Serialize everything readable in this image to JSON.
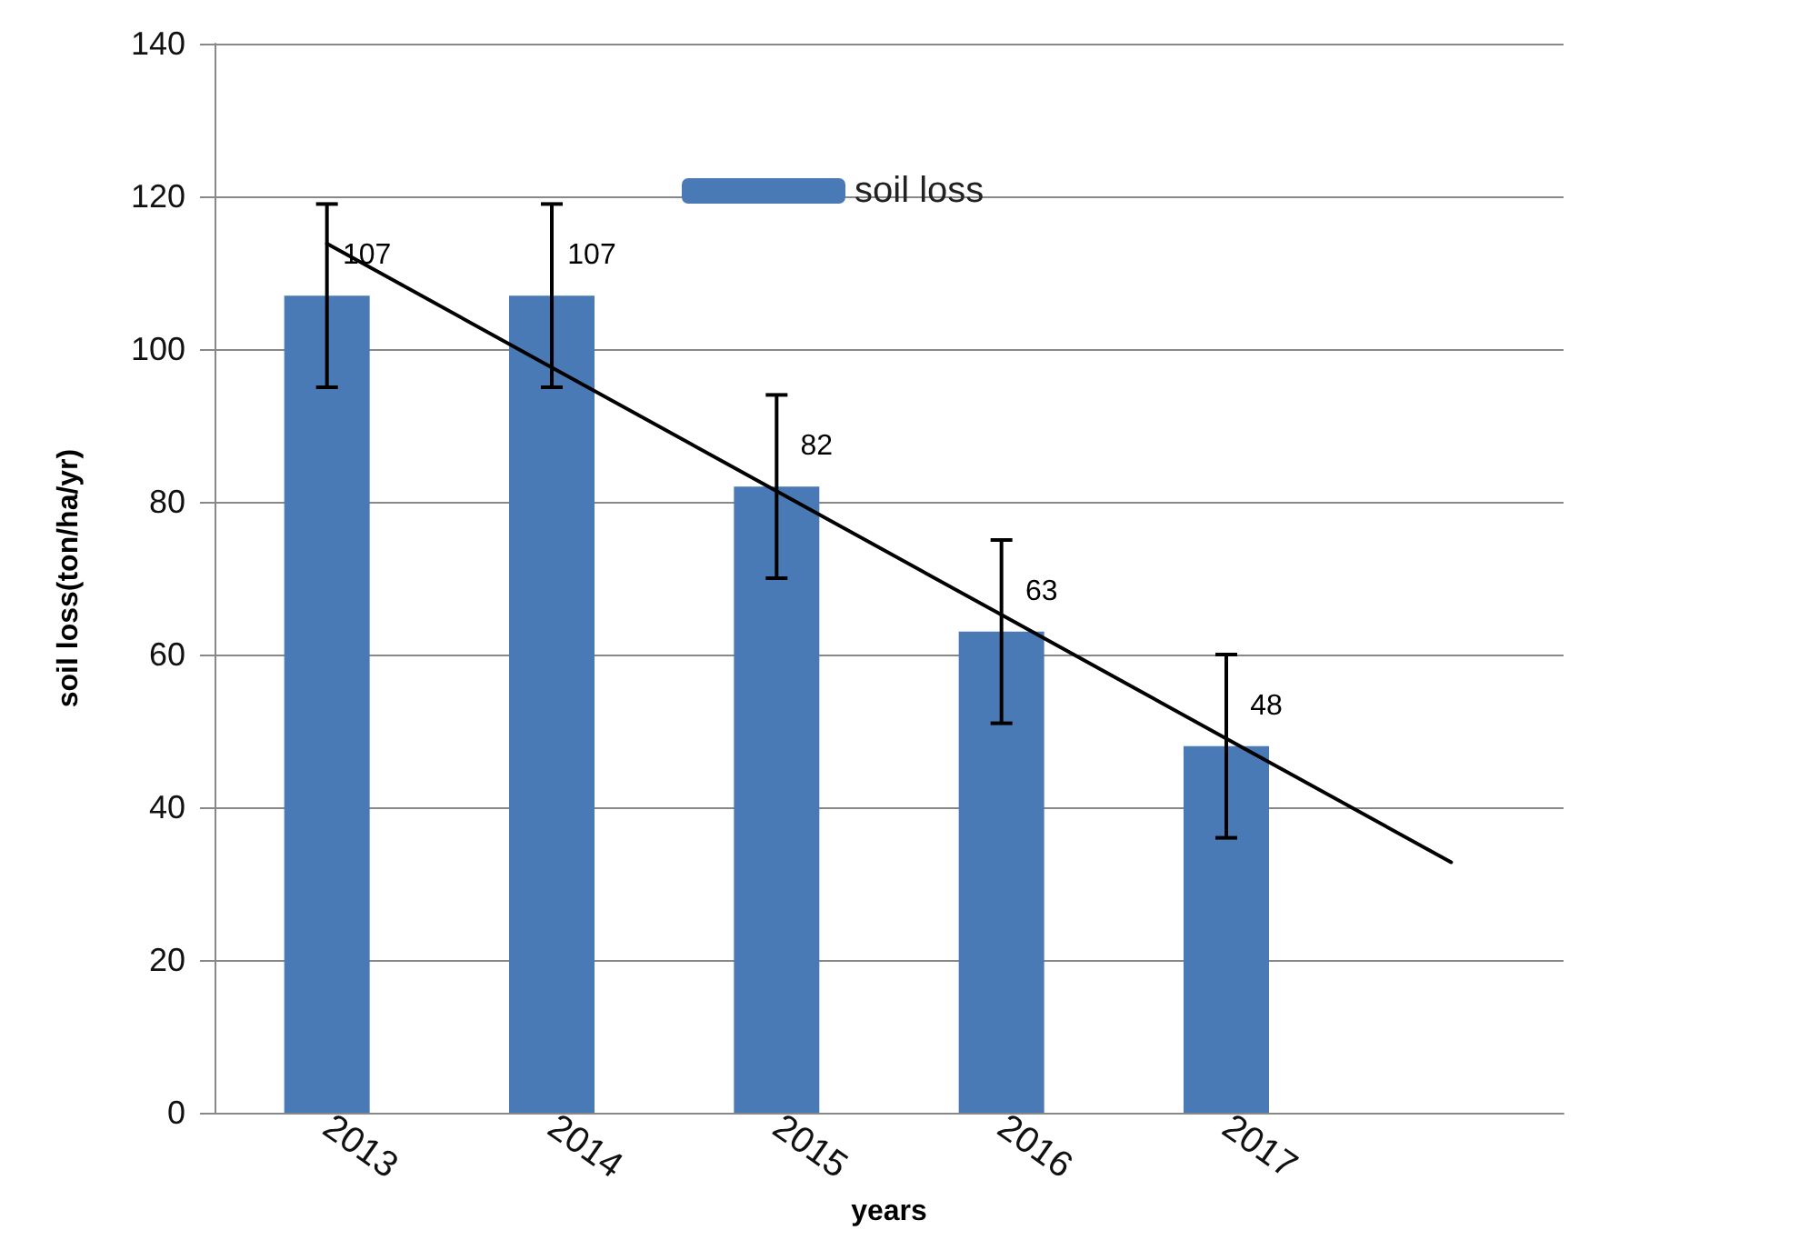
{
  "chart_data": {
    "type": "bar",
    "xlabel": "years",
    "ylabel": "soil loss(ton/ha/yr)",
    "categories": [
      "2013",
      "2014",
      "2015",
      "2016",
      "2017",
      null
    ],
    "series": [
      {
        "name": "soil loss",
        "color": "#4a7ab5",
        "values": [
          107,
          107,
          82,
          63,
          48,
          null
        ],
        "value_labels": [
          "107",
          "107",
          "82",
          "63",
          "48",
          null
        ],
        "errors": [
          12,
          12,
          12,
          12,
          12,
          null
        ]
      },
      {
        "type": "line",
        "color": "#000000",
        "values": [
          113.8,
          97.6,
          81.4,
          65.2,
          49,
          32.8
        ],
        "marker": "none",
        "line_style": "solid"
      }
    ],
    "ylim": [
      0,
      140
    ],
    "yticks": [
      0,
      20,
      40,
      60,
      80,
      100,
      120,
      140
    ],
    "grid": "y",
    "legend": "top"
  }
}
